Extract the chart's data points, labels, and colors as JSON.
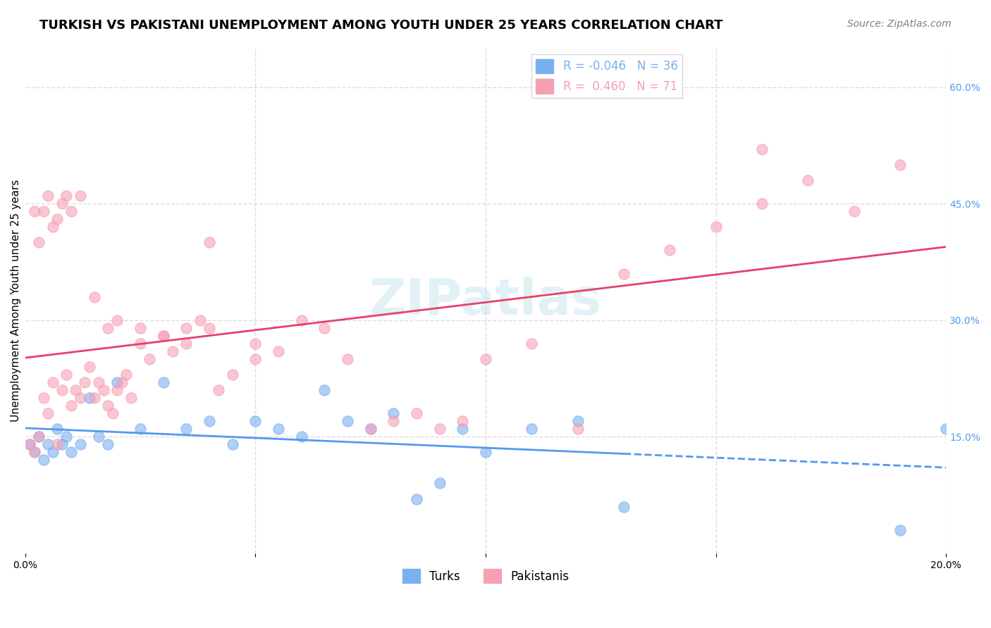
{
  "title": "TURKISH VS PAKISTANI UNEMPLOYMENT AMONG YOUTH UNDER 25 YEARS CORRELATION CHART",
  "source": "Source: ZipAtlas.com",
  "ylabel": "Unemployment Among Youth under 25 years",
  "xlim": [
    0.0,
    0.2
  ],
  "ylim": [
    0.0,
    0.65
  ],
  "yticks_right": [
    0.15,
    0.3,
    0.45,
    0.6
  ],
  "ytick_labels_right": [
    "15.0%",
    "30.0%",
    "45.0%",
    "60.0%"
  ],
  "background_color": "#ffffff",
  "grid_color": "#dddddd",
  "watermark": "ZIPatlas",
  "legend_r_entries": [
    {
      "label": "R = -0.046   N = 36",
      "color": "#7aaff0"
    },
    {
      "label": "R =  0.460   N = 71",
      "color": "#f5a0b5"
    }
  ],
  "turks_x": [
    0.001,
    0.002,
    0.003,
    0.004,
    0.005,
    0.006,
    0.007,
    0.008,
    0.009,
    0.01,
    0.012,
    0.014,
    0.016,
    0.018,
    0.02,
    0.025,
    0.03,
    0.035,
    0.04,
    0.045,
    0.05,
    0.055,
    0.06,
    0.065,
    0.07,
    0.075,
    0.08,
    0.085,
    0.09,
    0.095,
    0.1,
    0.11,
    0.12,
    0.13,
    0.19,
    0.2
  ],
  "turks_y": [
    0.14,
    0.13,
    0.15,
    0.12,
    0.14,
    0.13,
    0.16,
    0.14,
    0.15,
    0.13,
    0.14,
    0.2,
    0.15,
    0.14,
    0.22,
    0.16,
    0.22,
    0.16,
    0.17,
    0.14,
    0.17,
    0.16,
    0.15,
    0.21,
    0.17,
    0.16,
    0.18,
    0.07,
    0.09,
    0.16,
    0.13,
    0.16,
    0.17,
    0.06,
    0.03,
    0.16
  ],
  "pakistanis_x": [
    0.001,
    0.002,
    0.003,
    0.004,
    0.005,
    0.006,
    0.007,
    0.008,
    0.009,
    0.01,
    0.011,
    0.012,
    0.013,
    0.014,
    0.015,
    0.016,
    0.017,
    0.018,
    0.019,
    0.02,
    0.021,
    0.022,
    0.023,
    0.025,
    0.027,
    0.03,
    0.032,
    0.035,
    0.038,
    0.04,
    0.042,
    0.045,
    0.05,
    0.055,
    0.06,
    0.065,
    0.07,
    0.075,
    0.08,
    0.085,
    0.09,
    0.095,
    0.1,
    0.11,
    0.12,
    0.13,
    0.14,
    0.15,
    0.16,
    0.17,
    0.18,
    0.19,
    0.002,
    0.003,
    0.004,
    0.005,
    0.006,
    0.007,
    0.008,
    0.009,
    0.01,
    0.012,
    0.015,
    0.018,
    0.02,
    0.025,
    0.03,
    0.035,
    0.04,
    0.05,
    0.16
  ],
  "pakistanis_y": [
    0.14,
    0.13,
    0.15,
    0.2,
    0.18,
    0.22,
    0.14,
    0.21,
    0.23,
    0.19,
    0.21,
    0.2,
    0.22,
    0.24,
    0.2,
    0.22,
    0.21,
    0.19,
    0.18,
    0.21,
    0.22,
    0.23,
    0.2,
    0.27,
    0.25,
    0.28,
    0.26,
    0.27,
    0.3,
    0.29,
    0.21,
    0.23,
    0.27,
    0.26,
    0.3,
    0.29,
    0.25,
    0.16,
    0.17,
    0.18,
    0.16,
    0.17,
    0.25,
    0.27,
    0.16,
    0.36,
    0.39,
    0.42,
    0.45,
    0.48,
    0.44,
    0.5,
    0.44,
    0.4,
    0.44,
    0.46,
    0.42,
    0.43,
    0.45,
    0.46,
    0.44,
    0.46,
    0.33,
    0.29,
    0.3,
    0.29,
    0.28,
    0.29,
    0.4,
    0.25,
    0.52
  ],
  "turks_color": "#7aaff0",
  "pakistanis_color": "#f5a0b5",
  "turks_line_color": "#5599ee",
  "pakistanis_line_color": "#e8406a",
  "title_fontsize": 13,
  "source_fontsize": 10,
  "axis_label_fontsize": 11,
  "tick_fontsize": 10,
  "legend_fontsize": 12,
  "marker_size": 120,
  "marker_alpha": 0.6,
  "turks_legend_label": "Turks",
  "pakistanis_legend_label": "Pakistanis"
}
